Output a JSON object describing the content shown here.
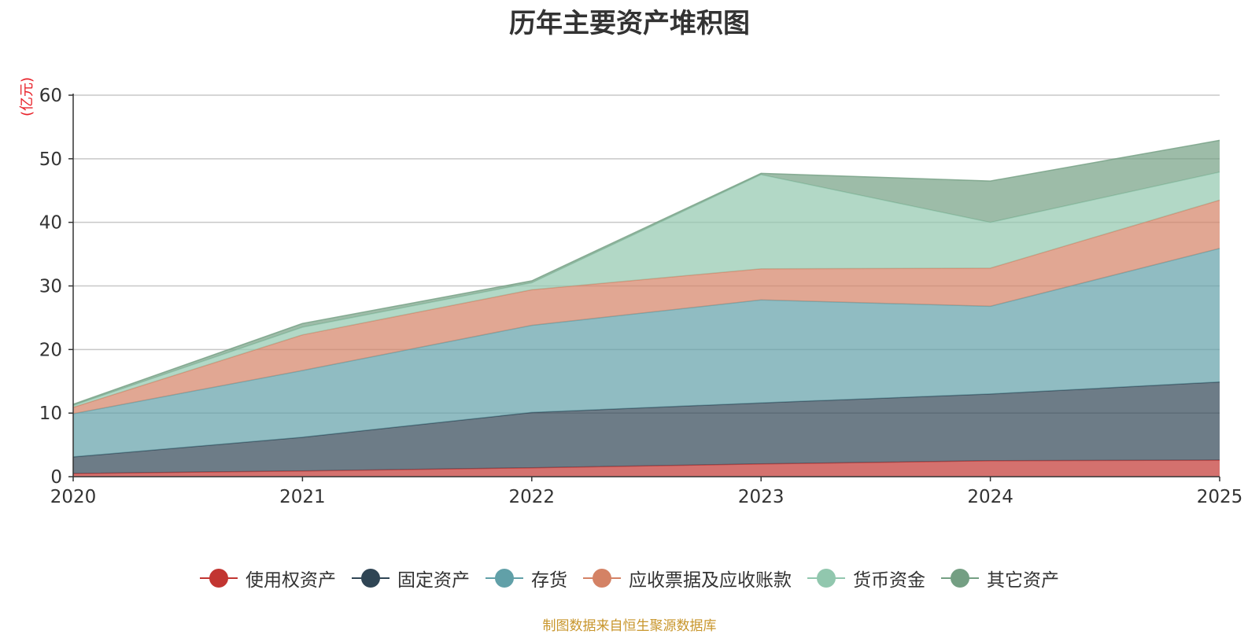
{
  "chart_data": {
    "type": "area",
    "title": "历年主要资产堆积图",
    "ylabel": "(亿元)",
    "xlabel": "",
    "stacked": true,
    "categories": [
      "2020",
      "2021",
      "2022",
      "2023",
      "2024",
      "2025"
    ],
    "ylim": [
      0,
      60
    ],
    "yticks": [
      0,
      10,
      20,
      30,
      40,
      50,
      60
    ],
    "grid": true,
    "legend_position": "bottom",
    "series": [
      {
        "name": "使用权资产",
        "color": "#c23531",
        "values": [
          0.5,
          0.9,
          1.4,
          2.0,
          2.5,
          2.6
        ]
      },
      {
        "name": "固定资产",
        "color": "#2f4554",
        "values": [
          2.6,
          5.3,
          8.7,
          9.6,
          10.5,
          12.3
        ]
      },
      {
        "name": "存货",
        "color": "#61a0a8",
        "values": [
          6.8,
          10.5,
          13.7,
          16.2,
          13.8,
          21.0
        ]
      },
      {
        "name": "应收票据及应收账款",
        "color": "#d48265",
        "values": [
          1.0,
          5.6,
          5.6,
          4.9,
          6.0,
          7.6
        ]
      },
      {
        "name": "货币资金",
        "color": "#91c7ae",
        "values": [
          0.3,
          1.2,
          1.1,
          14.8,
          7.2,
          4.4
        ]
      },
      {
        "name": "其它资产",
        "color": "#749f83",
        "values": [
          0.2,
          0.6,
          0.3,
          0.2,
          6.5,
          5.0
        ]
      }
    ]
  },
  "source": "制图数据来自恒生聚源数据库"
}
